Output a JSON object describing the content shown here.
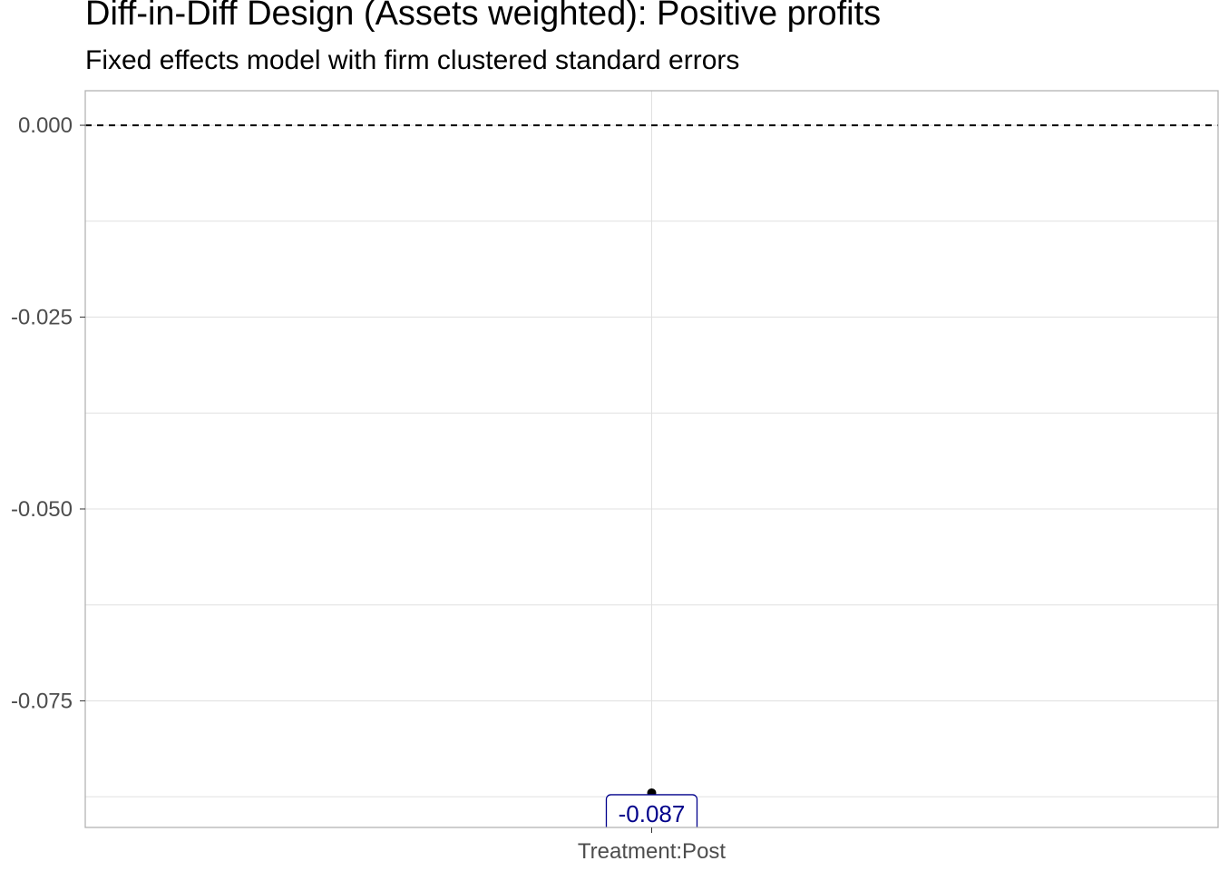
{
  "chart_data": {
    "type": "scatter",
    "title": "Diff-in-Diff Design (Assets weighted): Positive profits",
    "subtitle": "Fixed effects model with firm clustered standard errors",
    "xlabel": "",
    "ylabel": "",
    "categories": [
      "Treatment:Post"
    ],
    "values": [
      -0.087
    ],
    "value_labels": [
      "-0.087"
    ],
    "yticks": [
      0.0,
      -0.025,
      -0.05,
      -0.075
    ],
    "ytick_labels": [
      "0.000",
      "-0.025",
      "-0.050",
      "-0.075"
    ],
    "ylim": [
      -0.0915,
      0.0045
    ],
    "reference_line": {
      "y": 0,
      "style": "dashed"
    },
    "grid": true,
    "legend": "none",
    "colors": {
      "point": "#000000",
      "label_text": "#00008b",
      "label_border": "#00008b",
      "grid": "#e0e0e0",
      "panel_border": "#b3b3b3"
    }
  }
}
